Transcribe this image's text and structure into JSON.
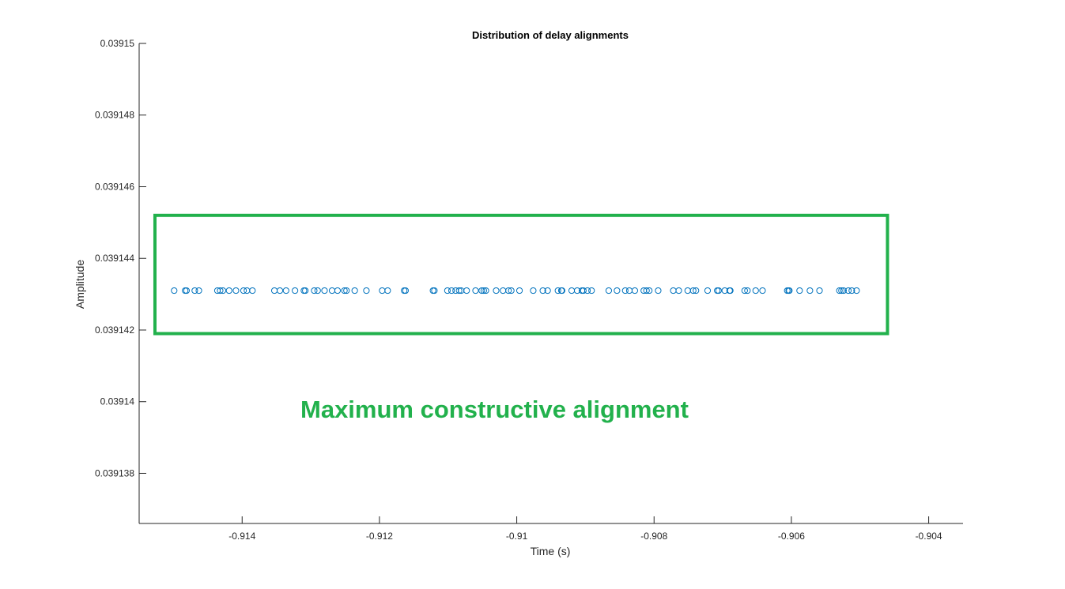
{
  "chart_data": {
    "type": "scatter",
    "title": "Distribution of delay alignments",
    "xlabel": "Time (s)",
    "ylabel": "Amplitude",
    "xlim": [
      -0.9155,
      -0.9035
    ],
    "ylim": [
      0.0391366,
      0.03915
    ],
    "x_ticks": [
      -0.914,
      -0.912,
      -0.91,
      -0.908,
      -0.906,
      -0.904
    ],
    "x_tick_labels": [
      "-0.914",
      "-0.912",
      "-0.91",
      "-0.908",
      "-0.906",
      "-0.904"
    ],
    "y_ticks": [
      0.039138,
      0.03914,
      0.039142,
      0.039144,
      0.039146,
      0.039148,
      0.03915
    ],
    "y_tick_labels": [
      "0.039138",
      "0.03914",
      "0.039142",
      "0.039144",
      "0.039146",
      "0.039148",
      "0.03915"
    ],
    "grid": false,
    "marker": "open-circle",
    "series": [
      {
        "color": "#0072BD",
        "y": 0.0391431,
        "x": [
          -0.91499,
          -0.91483,
          -0.91481,
          -0.91469,
          -0.91463,
          -0.91436,
          -0.91432,
          -0.91428,
          -0.91419,
          -0.91409,
          -0.91398,
          -0.91393,
          -0.91385,
          -0.91353,
          -0.91345,
          -0.91336,
          -0.91323,
          -0.9131,
          -0.91308,
          -0.91295,
          -0.9129,
          -0.9128,
          -0.91269,
          -0.91261,
          -0.91251,
          -0.91248,
          -0.91236,
          -0.91219,
          -0.91196,
          -0.91188,
          -0.91164,
          -0.91162,
          -0.91122,
          -0.9112,
          -0.91101,
          -0.91095,
          -0.91089,
          -0.91084,
          -0.91081,
          -0.91073,
          -0.9106,
          -0.91051,
          -0.91048,
          -0.91045,
          -0.9103,
          -0.9102,
          -0.91012,
          -0.91008,
          -0.90996,
          -0.90976,
          -0.90962,
          -0.90955,
          -0.9094,
          -0.90935,
          -0.90934,
          -0.9092,
          -0.90912,
          -0.90905,
          -0.90903,
          -0.90897,
          -0.90891,
          -0.90866,
          -0.90854,
          -0.90842,
          -0.90836,
          -0.90828,
          -0.90815,
          -0.90811,
          -0.90807,
          -0.90794,
          -0.90772,
          -0.90764,
          -0.90751,
          -0.90743,
          -0.90739,
          -0.90722,
          -0.90708,
          -0.90706,
          -0.90697,
          -0.9069,
          -0.90689,
          -0.90668,
          -0.90664,
          -0.90652,
          -0.90642,
          -0.90606,
          -0.90604,
          -0.90603,
          -0.90588,
          -0.90573,
          -0.90559,
          -0.9053,
          -0.90527,
          -0.90524,
          -0.90517,
          -0.90512,
          -0.90505
        ]
      }
    ],
    "annotation": {
      "text": "Maximum constructive alignment",
      "color": "#22B14C",
      "box_x": [
        -0.91527,
        -0.9046
      ],
      "box_y": [
        0.0391419,
        0.0391452
      ]
    }
  }
}
